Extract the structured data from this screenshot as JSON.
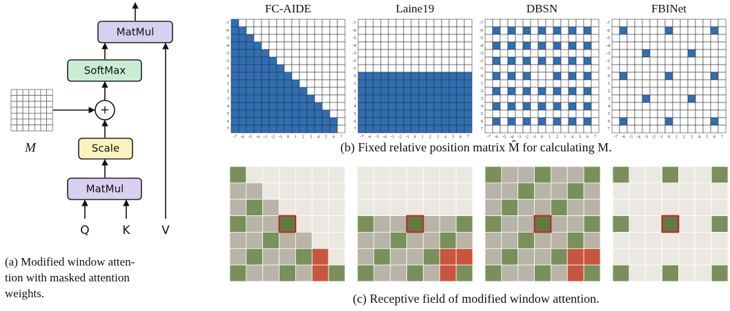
{
  "diagram": {
    "boxes": [
      "MatMul",
      "SoftMax",
      "Scale",
      "MatMul"
    ],
    "plus": "+",
    "inputs": [
      "Q",
      "K",
      "V"
    ],
    "mask_label": "M"
  },
  "captions": {
    "a": [
      "(a) Modified window atten-",
      "tion with masked attention",
      "weights."
    ],
    "b": "(b) Fixed relative position matrix M̂ for calculating M.",
    "c": "(c) Receptive field of modified window attention."
  },
  "axis_ticks": [
    -7,
    -6,
    -5,
    -4,
    -3,
    -2,
    -1,
    0,
    1,
    2,
    3,
    4,
    5,
    6,
    7
  ],
  "matrices": [
    {
      "title": "FC-AIDE",
      "mask": [
        [
          1,
          0,
          0,
          0,
          0,
          0,
          0,
          0,
          0,
          0,
          0,
          0,
          0,
          0,
          0
        ],
        [
          1,
          1,
          0,
          0,
          0,
          0,
          0,
          0,
          0,
          0,
          0,
          0,
          0,
          0,
          0
        ],
        [
          1,
          1,
          1,
          0,
          0,
          0,
          0,
          0,
          0,
          0,
          0,
          0,
          0,
          0,
          0
        ],
        [
          1,
          1,
          1,
          1,
          0,
          0,
          0,
          0,
          0,
          0,
          0,
          0,
          0,
          0,
          0
        ],
        [
          1,
          1,
          1,
          1,
          1,
          0,
          0,
          0,
          0,
          0,
          0,
          0,
          0,
          0,
          0
        ],
        [
          1,
          1,
          1,
          1,
          1,
          1,
          0,
          0,
          0,
          0,
          0,
          0,
          0,
          0,
          0
        ],
        [
          1,
          1,
          1,
          1,
          1,
          1,
          1,
          0,
          0,
          0,
          0,
          0,
          0,
          0,
          0
        ],
        [
          1,
          1,
          1,
          1,
          1,
          1,
          1,
          1,
          0,
          0,
          0,
          0,
          0,
          0,
          0
        ],
        [
          1,
          1,
          1,
          1,
          1,
          1,
          1,
          1,
          1,
          0,
          0,
          0,
          0,
          0,
          0
        ],
        [
          1,
          1,
          1,
          1,
          1,
          1,
          1,
          1,
          1,
          1,
          0,
          0,
          0,
          0,
          0
        ],
        [
          1,
          1,
          1,
          1,
          1,
          1,
          1,
          1,
          1,
          1,
          1,
          0,
          0,
          0,
          0
        ],
        [
          1,
          1,
          1,
          1,
          1,
          1,
          1,
          1,
          1,
          1,
          1,
          1,
          0,
          0,
          0
        ],
        [
          1,
          1,
          1,
          1,
          1,
          1,
          1,
          1,
          1,
          1,
          1,
          1,
          1,
          0,
          0
        ],
        [
          1,
          1,
          1,
          1,
          1,
          1,
          1,
          1,
          1,
          1,
          1,
          1,
          1,
          1,
          0
        ],
        [
          1,
          1,
          1,
          1,
          1,
          1,
          1,
          1,
          1,
          1,
          1,
          1,
          1,
          1,
          0
        ]
      ]
    },
    {
      "title": "Laine19",
      "mask": [
        [
          0,
          0,
          0,
          0,
          0,
          0,
          0,
          0,
          0,
          0,
          0,
          0,
          0,
          0,
          0
        ],
        [
          0,
          0,
          0,
          0,
          0,
          0,
          0,
          0,
          0,
          0,
          0,
          0,
          0,
          0,
          0
        ],
        [
          0,
          0,
          0,
          0,
          0,
          0,
          0,
          0,
          0,
          0,
          0,
          0,
          0,
          0,
          0
        ],
        [
          0,
          0,
          0,
          0,
          0,
          0,
          0,
          0,
          0,
          0,
          0,
          0,
          0,
          0,
          0
        ],
        [
          0,
          0,
          0,
          0,
          0,
          0,
          0,
          0,
          0,
          0,
          0,
          0,
          0,
          0,
          0
        ],
        [
          0,
          0,
          0,
          0,
          0,
          0,
          0,
          0,
          0,
          0,
          0,
          0,
          0,
          0,
          0
        ],
        [
          0,
          0,
          0,
          0,
          0,
          0,
          0,
          0,
          0,
          0,
          0,
          0,
          0,
          0,
          0
        ],
        [
          1,
          1,
          1,
          1,
          1,
          1,
          1,
          1,
          1,
          1,
          1,
          1,
          1,
          1,
          1
        ],
        [
          1,
          1,
          1,
          1,
          1,
          1,
          1,
          1,
          1,
          1,
          1,
          1,
          1,
          1,
          1
        ],
        [
          1,
          1,
          1,
          1,
          1,
          1,
          1,
          1,
          1,
          1,
          1,
          1,
          1,
          1,
          1
        ],
        [
          1,
          1,
          1,
          1,
          1,
          1,
          1,
          1,
          1,
          1,
          1,
          1,
          1,
          1,
          1
        ],
        [
          1,
          1,
          1,
          1,
          1,
          1,
          1,
          1,
          1,
          1,
          1,
          1,
          1,
          1,
          1
        ],
        [
          1,
          1,
          1,
          1,
          1,
          1,
          1,
          1,
          1,
          1,
          1,
          1,
          1,
          1,
          1
        ],
        [
          1,
          1,
          1,
          1,
          1,
          1,
          1,
          1,
          1,
          1,
          1,
          1,
          1,
          1,
          1
        ],
        [
          1,
          1,
          1,
          1,
          1,
          1,
          1,
          1,
          1,
          1,
          1,
          1,
          1,
          1,
          1
        ]
      ]
    },
    {
      "title": "DBSN",
      "mask": [
        [
          0,
          0,
          0,
          0,
          0,
          0,
          0,
          0,
          0,
          0,
          0,
          0,
          0,
          0,
          0
        ],
        [
          0,
          1,
          0,
          1,
          0,
          1,
          0,
          1,
          0,
          1,
          0,
          1,
          0,
          1,
          0
        ],
        [
          0,
          0,
          0,
          0,
          0,
          0,
          0,
          0,
          0,
          0,
          0,
          0,
          0,
          0,
          0
        ],
        [
          0,
          1,
          0,
          1,
          0,
          1,
          0,
          1,
          0,
          1,
          0,
          1,
          0,
          1,
          0
        ],
        [
          0,
          0,
          0,
          0,
          0,
          0,
          0,
          0,
          0,
          0,
          0,
          0,
          0,
          0,
          0
        ],
        [
          0,
          1,
          0,
          1,
          0,
          1,
          0,
          1,
          0,
          1,
          0,
          1,
          0,
          1,
          0
        ],
        [
          0,
          0,
          0,
          0,
          0,
          0,
          0,
          0,
          0,
          0,
          0,
          0,
          0,
          0,
          0
        ],
        [
          0,
          1,
          0,
          1,
          0,
          1,
          0,
          0,
          0,
          1,
          0,
          1,
          0,
          1,
          0
        ],
        [
          0,
          0,
          0,
          0,
          0,
          0,
          0,
          0,
          0,
          0,
          0,
          0,
          0,
          0,
          0
        ],
        [
          0,
          1,
          0,
          1,
          0,
          1,
          0,
          1,
          0,
          1,
          0,
          1,
          0,
          1,
          0
        ],
        [
          0,
          0,
          0,
          0,
          0,
          0,
          0,
          0,
          0,
          0,
          0,
          0,
          0,
          0,
          0
        ],
        [
          0,
          1,
          0,
          1,
          0,
          1,
          0,
          1,
          0,
          1,
          0,
          1,
          0,
          1,
          0
        ],
        [
          0,
          0,
          0,
          0,
          0,
          0,
          0,
          0,
          0,
          0,
          0,
          0,
          0,
          0,
          0
        ],
        [
          0,
          1,
          0,
          1,
          0,
          1,
          0,
          1,
          0,
          1,
          0,
          1,
          0,
          1,
          0
        ],
        [
          0,
          0,
          0,
          0,
          0,
          0,
          0,
          0,
          0,
          0,
          0,
          0,
          0,
          0,
          0
        ]
      ]
    },
    {
      "title": "FBINet",
      "mask": [
        [
          0,
          0,
          0,
          0,
          0,
          0,
          0,
          0,
          0,
          0,
          0,
          0,
          0,
          0,
          0
        ],
        [
          0,
          1,
          0,
          0,
          0,
          0,
          0,
          1,
          0,
          0,
          0,
          0,
          0,
          1,
          0
        ],
        [
          0,
          0,
          0,
          0,
          0,
          0,
          0,
          0,
          0,
          0,
          0,
          0,
          0,
          0,
          0
        ],
        [
          0,
          0,
          0,
          0,
          0,
          0,
          0,
          0,
          0,
          0,
          0,
          0,
          0,
          0,
          0
        ],
        [
          0,
          0,
          0,
          0,
          1,
          0,
          0,
          0,
          0,
          0,
          1,
          0,
          0,
          0,
          0
        ],
        [
          0,
          0,
          0,
          0,
          0,
          0,
          0,
          0,
          0,
          0,
          0,
          0,
          0,
          0,
          0
        ],
        [
          0,
          0,
          0,
          0,
          0,
          0,
          0,
          0,
          0,
          0,
          0,
          0,
          0,
          0,
          0
        ],
        [
          0,
          1,
          0,
          0,
          0,
          0,
          0,
          1,
          0,
          0,
          0,
          0,
          0,
          1,
          0
        ],
        [
          0,
          0,
          0,
          0,
          0,
          0,
          0,
          0,
          0,
          0,
          0,
          0,
          0,
          0,
          0
        ],
        [
          0,
          0,
          0,
          0,
          0,
          0,
          0,
          0,
          0,
          0,
          0,
          0,
          0,
          0,
          0
        ],
        [
          0,
          0,
          0,
          0,
          1,
          0,
          0,
          0,
          0,
          0,
          1,
          0,
          0,
          0,
          0
        ],
        [
          0,
          0,
          0,
          0,
          0,
          0,
          0,
          0,
          0,
          0,
          0,
          0,
          0,
          0,
          0
        ],
        [
          0,
          0,
          0,
          0,
          0,
          0,
          0,
          0,
          0,
          0,
          0,
          0,
          0,
          0,
          0
        ],
        [
          0,
          1,
          0,
          0,
          0,
          0,
          0,
          1,
          0,
          0,
          0,
          0,
          0,
          1,
          0
        ],
        [
          0,
          0,
          0,
          0,
          0,
          0,
          0,
          0,
          0,
          0,
          0,
          0,
          0,
          0,
          0
        ]
      ]
    }
  ]
}
